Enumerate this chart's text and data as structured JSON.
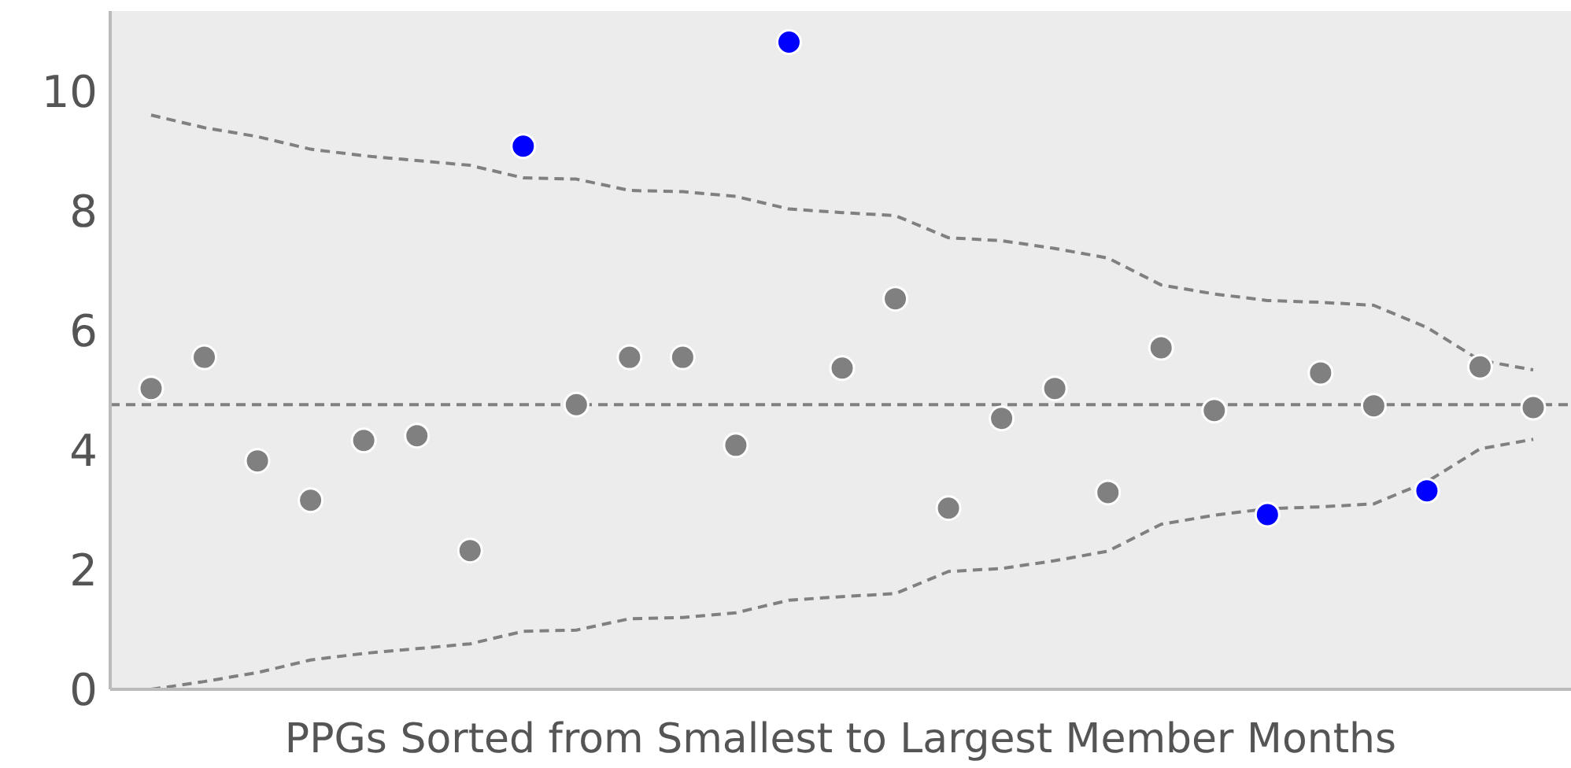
{
  "chart_data": {
    "type": "scatter",
    "xlabel": "PPGs Sorted from Smallest to Largest Member Months",
    "categories": [
      null,
      null,
      null,
      null,
      null,
      null,
      null,
      null,
      null,
      null,
      null,
      null,
      null,
      null,
      null,
      null,
      null,
      null,
      null,
      null,
      null,
      null,
      null,
      null,
      null,
      null,
      null
    ],
    "series": [
      {
        "type": "scatter",
        "color": "#808080",
        "colors": [
          "#808080",
          "#808080",
          "#808080",
          "#808080",
          "#808080",
          "#808080",
          "#808080",
          "#0000ff",
          "#808080",
          "#808080",
          "#808080",
          "#808080",
          "#0000ff",
          "#808080",
          "#808080",
          "#808080",
          "#808080",
          "#808080",
          "#808080",
          "#808080",
          "#808080",
          "#0000ff",
          "#808080",
          "#808080",
          "#0000ff",
          "#808080",
          "#808080"
        ],
        "values": [
          5.03,
          5.55,
          3.82,
          3.16,
          4.16,
          4.24,
          2.32,
          9.08,
          4.76,
          5.55,
          5.55,
          4.08,
          10.82,
          5.37,
          6.53,
          3.03,
          4.53,
          5.03,
          3.29,
          5.71,
          4.66,
          2.92,
          5.29,
          4.74,
          3.32,
          5.39,
          4.71
        ]
      },
      {
        "type": "line",
        "color": "#808080",
        "line_style": "dashed",
        "marker": "none",
        "values": [
          9.6,
          9.39,
          9.24,
          9.03,
          8.92,
          8.84,
          8.76,
          8.55,
          8.53,
          8.34,
          8.32,
          8.24,
          8.03,
          7.97,
          7.92,
          7.55,
          7.5,
          7.37,
          7.21,
          6.76,
          6.61,
          6.5,
          6.47,
          6.42,
          6.05,
          5.5,
          5.34
        ]
      },
      {
        "type": "line",
        "color": "#808080",
        "line_style": "dashed",
        "marker": "none",
        "values": [
          0,
          0.13,
          0.28,
          0.49,
          0.6,
          0.68,
          0.76,
          0.97,
          0.99,
          1.18,
          1.2,
          1.28,
          1.49,
          1.55,
          1.6,
          1.97,
          2.02,
          2.15,
          2.31,
          2.76,
          2.91,
          3.02,
          3.05,
          3.1,
          3.47,
          4.02,
          4.18
        ]
      }
    ],
    "ref_lines": [
      {
        "axis": "y",
        "value": 4.76,
        "color": "#808080",
        "line_style": "dashed"
      }
    ],
    "ylim": [
      0,
      11.34
    ],
    "yticks": [
      0,
      2,
      4,
      6,
      8,
      10
    ],
    "grid": false,
    "legend": false,
    "tick_labels": "y"
  }
}
